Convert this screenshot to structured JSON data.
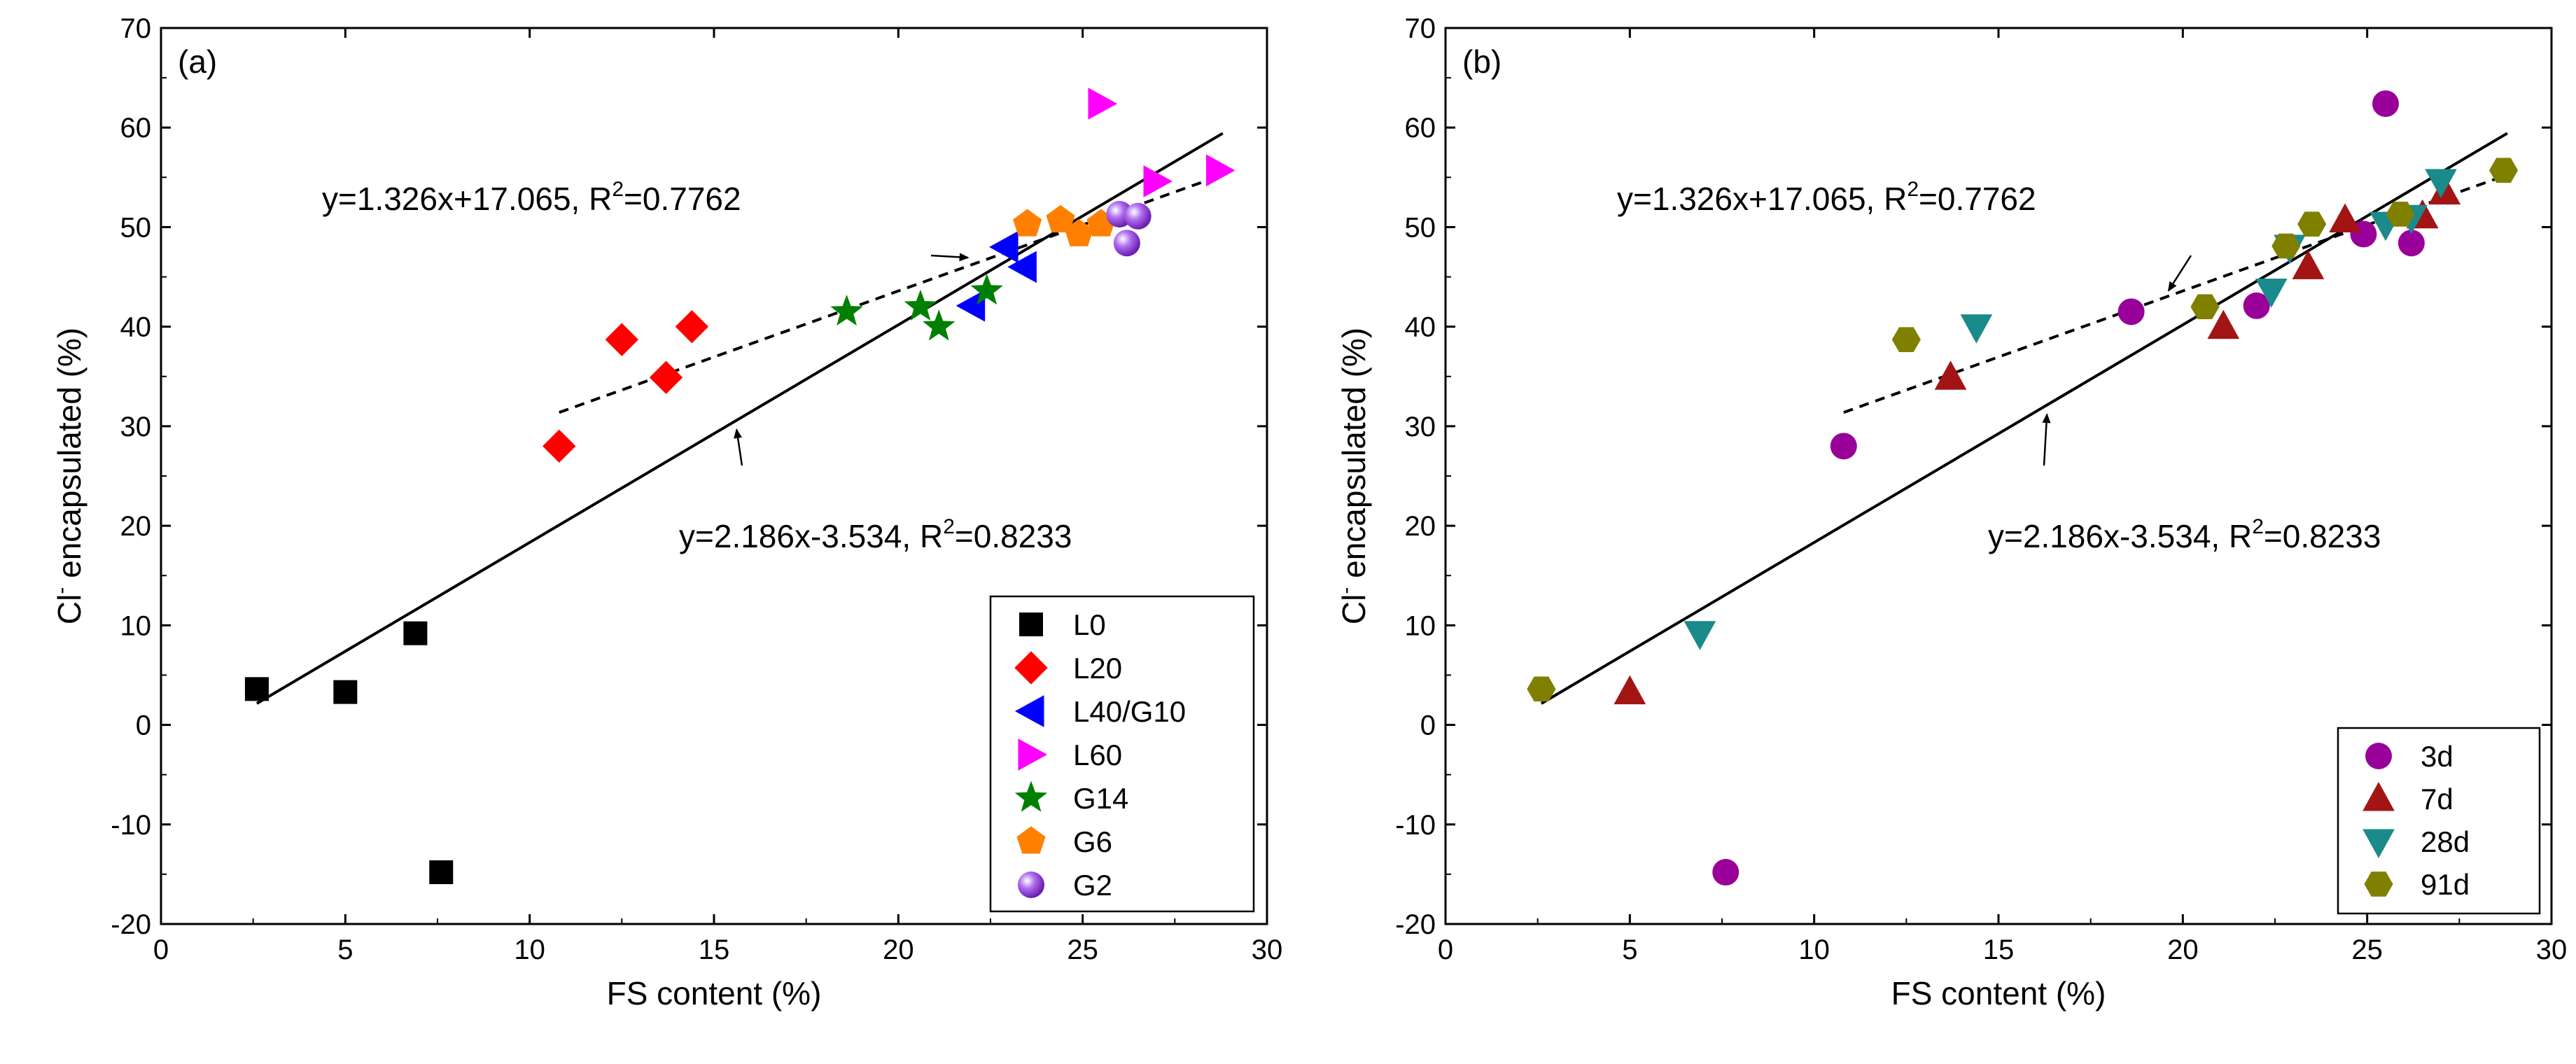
{
  "colors": {
    "L0": "#000000",
    "L20": "#ff0000",
    "L40/G10": "#0000ff",
    "L60": "#ff00ff",
    "G14": "#008000",
    "G6": "#ff8000",
    "G2": "#8e2bd6",
    "3d": "#990099",
    "7d": "#a31515",
    "28d": "#1a8a8a",
    "91d": "#808000"
  },
  "chart_data": [
    {
      "type": "scatter",
      "panel_label": "(a)",
      "xlabel": "FS content (%)",
      "ylabel_main": "Cl",
      "ylabel_sup": "-",
      "ylabel_rest": " encapsulated (%)",
      "xlim": [
        0,
        30
      ],
      "ylim": [
        -20,
        70
      ],
      "xticks": [
        0,
        5,
        10,
        15,
        20,
        25,
        30
      ],
      "yticks": [
        -20,
        -10,
        0,
        10,
        20,
        30,
        40,
        50,
        60,
        70
      ],
      "legend_position": "bottom-right",
      "series": [
        {
          "name": "L0",
          "marker": "square",
          "color": "#000000",
          "points": [
            [
              2.6,
              3.6
            ],
            [
              5.0,
              3.3
            ],
            [
              6.9,
              9.2
            ],
            [
              7.6,
              -14.8
            ]
          ]
        },
        {
          "name": "L20",
          "marker": "diamond",
          "color": "#ff0000",
          "points": [
            [
              10.8,
              28.0
            ],
            [
              12.5,
              38.7
            ],
            [
              13.7,
              34.9
            ],
            [
              14.4,
              40.0
            ]
          ]
        },
        {
          "name": "L40/G10",
          "marker": "triangle-left",
          "color": "#0000ff",
          "points": [
            [
              22.0,
              42.1
            ],
            [
              22.9,
              48.0
            ],
            [
              23.4,
              46.0
            ]
          ]
        },
        {
          "name": "L60",
          "marker": "triangle-right",
          "color": "#ff00ff",
          "points": [
            [
              25.5,
              62.4
            ],
            [
              27.0,
              54.6
            ],
            [
              28.7,
              55.7
            ]
          ]
        },
        {
          "name": "G14",
          "marker": "star",
          "color": "#008000",
          "points": [
            [
              18.6,
              41.5
            ],
            [
              20.6,
              42.0
            ],
            [
              21.1,
              40.0
            ],
            [
              22.4,
              43.6
            ]
          ]
        },
        {
          "name": "G6",
          "marker": "pentagon",
          "color": "#ff8000",
          "points": [
            [
              23.5,
              50.3
            ],
            [
              24.4,
              50.7
            ],
            [
              24.9,
              49.3
            ],
            [
              25.5,
              50.3
            ]
          ]
        },
        {
          "name": "G2",
          "marker": "sphere",
          "color": "#8e2bd6",
          "points": [
            [
              26.0,
              51.3
            ],
            [
              26.5,
              51.1
            ],
            [
              26.2,
              48.4
            ]
          ]
        }
      ],
      "fits": [
        {
          "label": "y=1.326x+17.065, R",
          "sup": "2",
          "r2": "=0.7762",
          "style": "dashed",
          "slope": 1.326,
          "intercept": 17.065,
          "x_range": [
            10.8,
            28.7
          ],
          "arrow_x": 22.0
        },
        {
          "label": "y=2.186x-3.534, R",
          "sup": "2",
          "r2": "=0.8233",
          "style": "solid",
          "slope": 2.186,
          "intercept": -3.534,
          "x_range": [
            2.6,
            28.8
          ],
          "arrow_x": 15.5
        }
      ]
    },
    {
      "type": "scatter",
      "panel_label": "(b)",
      "xlabel": "FS content (%)",
      "ylabel_main": "Cl",
      "ylabel_sup": "-",
      "ylabel_rest": " encapsulated (%)",
      "xlim": [
        0,
        30
      ],
      "ylim": [
        -20,
        70
      ],
      "xticks": [
        0,
        5,
        10,
        15,
        20,
        25,
        30
      ],
      "yticks": [
        -20,
        -10,
        0,
        10,
        20,
        30,
        40,
        50,
        60,
        70
      ],
      "legend_position": "bottom-right",
      "series": [
        {
          "name": "3d",
          "marker": "circle",
          "color": "#990099",
          "points": [
            [
              7.6,
              -14.8
            ],
            [
              10.8,
              28.0
            ],
            [
              18.6,
              41.5
            ],
            [
              22.0,
              42.1
            ],
            [
              24.9,
              49.3
            ],
            [
              25.5,
              62.4
            ],
            [
              26.2,
              48.4
            ]
          ]
        },
        {
          "name": "7d",
          "marker": "triangle-up",
          "color": "#a31515",
          "points": [
            [
              5.0,
              3.3
            ],
            [
              13.7,
              34.9
            ],
            [
              21.1,
              40.0
            ],
            [
              23.4,
              46.0
            ],
            [
              24.4,
              50.7
            ],
            [
              26.5,
              51.1
            ],
            [
              27.1,
              53.5
            ]
          ]
        },
        {
          "name": "28d",
          "marker": "triangle-down",
          "color": "#1a8a8a",
          "points": [
            [
              6.9,
              9.2
            ],
            [
              14.4,
              40.0
            ],
            [
              22.4,
              43.6
            ],
            [
              22.9,
              48.0
            ],
            [
              25.5,
              50.3
            ],
            [
              26.2,
              51.0
            ],
            [
              27.0,
              54.6
            ]
          ]
        },
        {
          "name": "91d",
          "marker": "hexagon",
          "color": "#808000",
          "points": [
            [
              2.6,
              3.6
            ],
            [
              12.5,
              38.7
            ],
            [
              20.6,
              42.0
            ],
            [
              22.8,
              48.1
            ],
            [
              23.5,
              50.3
            ],
            [
              25.9,
              51.3
            ],
            [
              28.7,
              55.7
            ]
          ]
        }
      ],
      "fits": [
        {
          "label": "y=1.326x+17.065, R",
          "sup": "2",
          "r2": "=0.7762",
          "style": "dashed",
          "slope": 1.326,
          "intercept": 17.065,
          "x_range": [
            10.8,
            28.7
          ],
          "arrow_x": 19.5
        },
        {
          "label": "y=2.186x-3.534, R",
          "sup": "2",
          "r2": "=0.8233",
          "style": "solid",
          "slope": 2.186,
          "intercept": -3.534,
          "x_range": [
            2.6,
            28.8
          ],
          "arrow_x": 16.2
        }
      ]
    }
  ]
}
